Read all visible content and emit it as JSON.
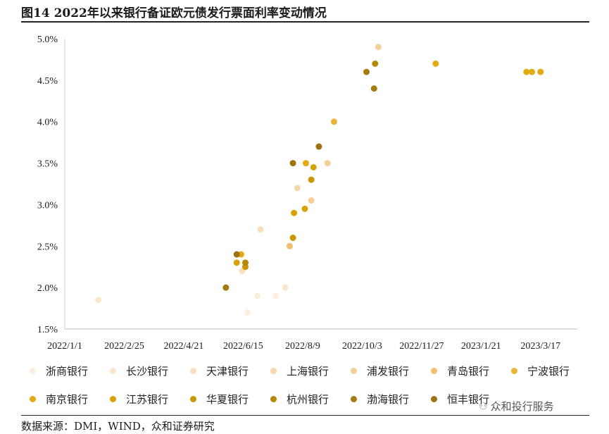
{
  "title": "图14 2022年以来银行备证欧元债发行票面利率变动情况",
  "source": "数据来源：DMI，WIND，众和证券研究",
  "watermark": "众和投行服务",
  "watermark_icon": "wechat-icon",
  "chart_data": {
    "type": "scatter",
    "title": "",
    "xlabel": "",
    "ylabel": "",
    "x_ticks": [
      "2022/1/1",
      "2022/2/25",
      "2022/4/21",
      "2022/6/15",
      "2022/8/9",
      "2022/10/3",
      "2022/11/27",
      "2023/1/21",
      "2023/3/17"
    ],
    "xlim": [
      "2022/1/1",
      "2023/4/20"
    ],
    "y_ticks": [
      "1.5%",
      "2.0%",
      "2.5%",
      "3.0%",
      "3.5%",
      "4.0%",
      "4.5%",
      "5.0%"
    ],
    "ylim": [
      1.5,
      5.0
    ],
    "grid": false,
    "legend_position": "bottom",
    "series": [
      {
        "name": "浙商银行",
        "color": "#fbeedc",
        "points": [
          {
            "x": "2022/6/19",
            "y": 1.7
          },
          {
            "x": "2022/6/28",
            "y": 1.9
          },
          {
            "x": "2022/7/15",
            "y": 1.9
          }
        ]
      },
      {
        "name": "长沙银行",
        "color": "#f9e6cc",
        "points": [
          {
            "x": "2022/2/1",
            "y": 1.85
          },
          {
            "x": "2022/7/24",
            "y": 2.0
          }
        ]
      },
      {
        "name": "天津银行",
        "color": "#f8dfc0",
        "points": [
          {
            "x": "2022/6/14",
            "y": 2.2
          },
          {
            "x": "2022/7/1",
            "y": 2.7
          }
        ]
      },
      {
        "name": "上海银行",
        "color": "#f5d6ad",
        "points": [
          {
            "x": "2022/8/4",
            "y": 3.2
          }
        ]
      },
      {
        "name": "浦发银行",
        "color": "#f5cf98",
        "points": [
          {
            "x": "2022/8/17",
            "y": 3.05
          },
          {
            "x": "2022/9/1",
            "y": 3.5
          },
          {
            "x": "2022/10/18",
            "y": 4.9
          }
        ]
      },
      {
        "name": "青岛银行",
        "color": "#f0c070",
        "points": [
          {
            "x": "2022/7/28",
            "y": 2.5
          }
        ]
      },
      {
        "name": "宁波银行",
        "color": "#ecb23c",
        "points": [
          {
            "x": "2022/9/7",
            "y": 4.0
          }
        ]
      },
      {
        "name": "南京银行",
        "color": "#e3aa14",
        "points": [
          {
            "x": "2022/6/13",
            "y": 2.4
          },
          {
            "x": "2022/8/12",
            "y": 3.5
          },
          {
            "x": "2022/12/10",
            "y": 4.7
          },
          {
            "x": "2023/3/4",
            "y": 4.6
          },
          {
            "x": "2023/3/9",
            "y": 4.6
          },
          {
            "x": "2023/3/17",
            "y": 4.6
          }
        ]
      },
      {
        "name": "江苏银行",
        "color": "#d8a207",
        "points": [
          {
            "x": "2022/6/9",
            "y": 2.3
          },
          {
            "x": "2022/8/1",
            "y": 2.9
          },
          {
            "x": "2022/8/11",
            "y": 2.95
          },
          {
            "x": "2022/8/19",
            "y": 3.45
          }
        ]
      },
      {
        "name": "华夏银行",
        "color": "#c99604",
        "points": [
          {
            "x": "2022/6/17",
            "y": 2.25
          },
          {
            "x": "2022/7/31",
            "y": 2.6
          },
          {
            "x": "2022/8/17",
            "y": 3.3
          }
        ]
      },
      {
        "name": "杭州银行",
        "color": "#b48808",
        "points": [
          {
            "x": "2022/6/17",
            "y": 2.3
          },
          {
            "x": "2022/10/15",
            "y": 4.7
          }
        ]
      },
      {
        "name": "渤海银行",
        "color": "#a47b0e",
        "points": [
          {
            "x": "2022/5/30",
            "y": 2.0
          },
          {
            "x": "2022/10/7",
            "y": 4.6
          },
          {
            "x": "2022/10/14",
            "y": 4.4
          }
        ]
      },
      {
        "name": "恒丰银行",
        "color": "#9b7312",
        "points": [
          {
            "x": "2022/6/9",
            "y": 2.4
          },
          {
            "x": "2022/7/31",
            "y": 3.5
          },
          {
            "x": "2022/8/24",
            "y": 3.7
          }
        ]
      }
    ]
  }
}
